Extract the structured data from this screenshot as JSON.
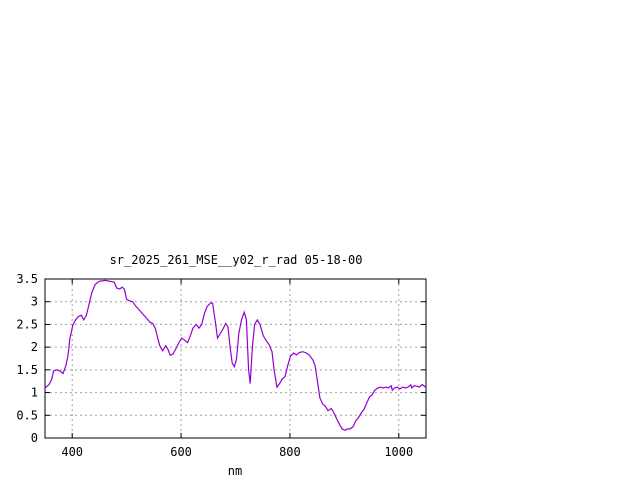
{
  "chart_data": {
    "type": "line",
    "title": "sr_2025_261_MSE__y02_r_rad 05-18-00",
    "xlabel": "nm",
    "ylabel": "",
    "xlim": [
      350,
      1050
    ],
    "ylim": [
      0,
      3.5
    ],
    "grid": true,
    "x_ticks": [
      400,
      600,
      800,
      1000
    ],
    "x_tick_labels": [
      "400",
      "600",
      "800",
      "1000"
    ],
    "y_ticks": [
      0,
      0.5,
      1,
      1.5,
      2,
      2.5,
      3,
      3.5
    ],
    "y_tick_labels": [
      "0",
      "0.5",
      "1",
      "1.5",
      "2",
      "2.5",
      "3",
      "3.5"
    ],
    "colors": {
      "series": "#9400d3"
    },
    "series": [
      {
        "points": [
          [
            350,
            1.1
          ],
          [
            357,
            1.17
          ],
          [
            362,
            1.28
          ],
          [
            366,
            1.48
          ],
          [
            372,
            1.5
          ],
          [
            378,
            1.47
          ],
          [
            383,
            1.42
          ],
          [
            388,
            1.58
          ],
          [
            392,
            1.8
          ],
          [
            396,
            2.2
          ],
          [
            401,
            2.48
          ],
          [
            406,
            2.6
          ],
          [
            412,
            2.68
          ],
          [
            417,
            2.7
          ],
          [
            421,
            2.6
          ],
          [
            426,
            2.7
          ],
          [
            431,
            2.95
          ],
          [
            436,
            3.2
          ],
          [
            442,
            3.38
          ],
          [
            450,
            3.45
          ],
          [
            460,
            3.47
          ],
          [
            470,
            3.45
          ],
          [
            477,
            3.43
          ],
          [
            482,
            3.3
          ],
          [
            487,
            3.28
          ],
          [
            492,
            3.32
          ],
          [
            496,
            3.27
          ],
          [
            500,
            3.05
          ],
          [
            505,
            3.02
          ],
          [
            511,
            3.0
          ],
          [
            517,
            2.9
          ],
          [
            523,
            2.82
          ],
          [
            530,
            2.72
          ],
          [
            537,
            2.63
          ],
          [
            543,
            2.55
          ],
          [
            548,
            2.52
          ],
          [
            553,
            2.4
          ],
          [
            557,
            2.2
          ],
          [
            561,
            2.03
          ],
          [
            566,
            1.92
          ],
          [
            572,
            2.03
          ],
          [
            576,
            1.95
          ],
          [
            580,
            1.82
          ],
          [
            585,
            1.85
          ],
          [
            590,
            1.95
          ],
          [
            596,
            2.1
          ],
          [
            601,
            2.2
          ],
          [
            607,
            2.15
          ],
          [
            612,
            2.1
          ],
          [
            617,
            2.25
          ],
          [
            622,
            2.42
          ],
          [
            628,
            2.5
          ],
          [
            633,
            2.42
          ],
          [
            638,
            2.5
          ],
          [
            643,
            2.75
          ],
          [
            648,
            2.9
          ],
          [
            654,
            2.97
          ],
          [
            658,
            2.97
          ],
          [
            663,
            2.55
          ],
          [
            667,
            2.2
          ],
          [
            672,
            2.3
          ],
          [
            677,
            2.4
          ],
          [
            682,
            2.52
          ],
          [
            686,
            2.45
          ],
          [
            690,
            2.0
          ],
          [
            694,
            1.65
          ],
          [
            698,
            1.57
          ],
          [
            702,
            1.75
          ],
          [
            706,
            2.3
          ],
          [
            711,
            2.6
          ],
          [
            716,
            2.77
          ],
          [
            720,
            2.6
          ],
          [
            724,
            1.5
          ],
          [
            727,
            1.2
          ],
          [
            731,
            2.0
          ],
          [
            735,
            2.5
          ],
          [
            740,
            2.6
          ],
          [
            745,
            2.5
          ],
          [
            751,
            2.25
          ],
          [
            756,
            2.15
          ],
          [
            762,
            2.05
          ],
          [
            767,
            1.9
          ],
          [
            771,
            1.5
          ],
          [
            776,
            1.12
          ],
          [
            781,
            1.2
          ],
          [
            786,
            1.3
          ],
          [
            791,
            1.35
          ],
          [
            796,
            1.6
          ],
          [
            801,
            1.8
          ],
          [
            807,
            1.87
          ],
          [
            812,
            1.83
          ],
          [
            817,
            1.88
          ],
          [
            824,
            1.9
          ],
          [
            830,
            1.87
          ],
          [
            836,
            1.82
          ],
          [
            842,
            1.72
          ],
          [
            846,
            1.6
          ],
          [
            850,
            1.3
          ],
          [
            855,
            0.88
          ],
          [
            860,
            0.75
          ],
          [
            865,
            0.7
          ],
          [
            870,
            0.6
          ],
          [
            876,
            0.65
          ],
          [
            881,
            0.55
          ],
          [
            886,
            0.42
          ],
          [
            891,
            0.3
          ],
          [
            896,
            0.2
          ],
          [
            901,
            0.17
          ],
          [
            906,
            0.2
          ],
          [
            911,
            0.2
          ],
          [
            916,
            0.25
          ],
          [
            921,
            0.38
          ],
          [
            926,
            0.45
          ],
          [
            931,
            0.55
          ],
          [
            936,
            0.63
          ],
          [
            941,
            0.77
          ],
          [
            946,
            0.9
          ],
          [
            951,
            0.95
          ],
          [
            956,
            1.05
          ],
          [
            961,
            1.1
          ],
          [
            966,
            1.12
          ],
          [
            971,
            1.1
          ],
          [
            976,
            1.12
          ],
          [
            981,
            1.1
          ],
          [
            986,
            1.15
          ],
          [
            988,
            1.05
          ],
          [
            992,
            1.1
          ],
          [
            997,
            1.12
          ],
          [
            1002,
            1.08
          ],
          [
            1007,
            1.12
          ],
          [
            1012,
            1.1
          ],
          [
            1017,
            1.12
          ],
          [
            1022,
            1.17
          ],
          [
            1024,
            1.1
          ],
          [
            1028,
            1.15
          ],
          [
            1033,
            1.14
          ],
          [
            1038,
            1.12
          ],
          [
            1043,
            1.18
          ],
          [
            1048,
            1.13
          ],
          [
            1050,
            1.15
          ]
        ]
      }
    ]
  }
}
